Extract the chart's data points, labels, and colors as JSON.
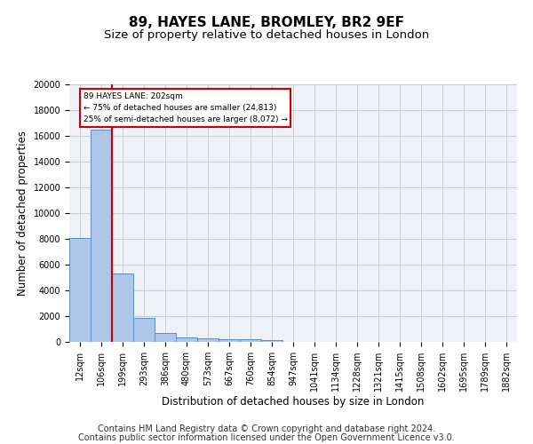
{
  "title": "89, HAYES LANE, BROMLEY, BR2 9EF",
  "subtitle": "Size of property relative to detached houses in London",
  "xlabel": "Distribution of detached houses by size in London",
  "ylabel": "Number of detached properties",
  "footer_line1": "Contains HM Land Registry data © Crown copyright and database right 2024.",
  "footer_line2": "Contains public sector information licensed under the Open Government Licence v3.0.",
  "bin_labels": [
    "12sqm",
    "106sqm",
    "199sqm",
    "293sqm",
    "386sqm",
    "480sqm",
    "573sqm",
    "667sqm",
    "760sqm",
    "854sqm",
    "947sqm",
    "1041sqm",
    "1134sqm",
    "1228sqm",
    "1321sqm",
    "1415sqm",
    "1508sqm",
    "1602sqm",
    "1695sqm",
    "1789sqm",
    "1882sqm"
  ],
  "bar_values": [
    8100,
    16500,
    5300,
    1850,
    700,
    350,
    270,
    220,
    200,
    150,
    0,
    0,
    0,
    0,
    0,
    0,
    0,
    0,
    0,
    0,
    0
  ],
  "bar_color": "#aec6e8",
  "bar_edge_color": "#5b8fc9",
  "vline_x": 1.5,
  "vline_color": "#cc0000",
  "annotation_text": "89 HAYES LANE: 202sqm\n← 75% of detached houses are smaller (24,813)\n25% of semi-detached houses are larger (8,072) →",
  "annotation_box_color": "#ffffff",
  "annotation_box_edge": "#cc0000",
  "ylim": [
    0,
    20000
  ],
  "yticks": [
    0,
    2000,
    4000,
    6000,
    8000,
    10000,
    12000,
    14000,
    16000,
    18000,
    20000
  ],
  "grid_color": "#cccccc",
  "bg_color": "#eef2f8",
  "title_fontsize": 11,
  "subtitle_fontsize": 9.5,
  "axis_label_fontsize": 8.5,
  "tick_fontsize": 7,
  "footer_fontsize": 7
}
